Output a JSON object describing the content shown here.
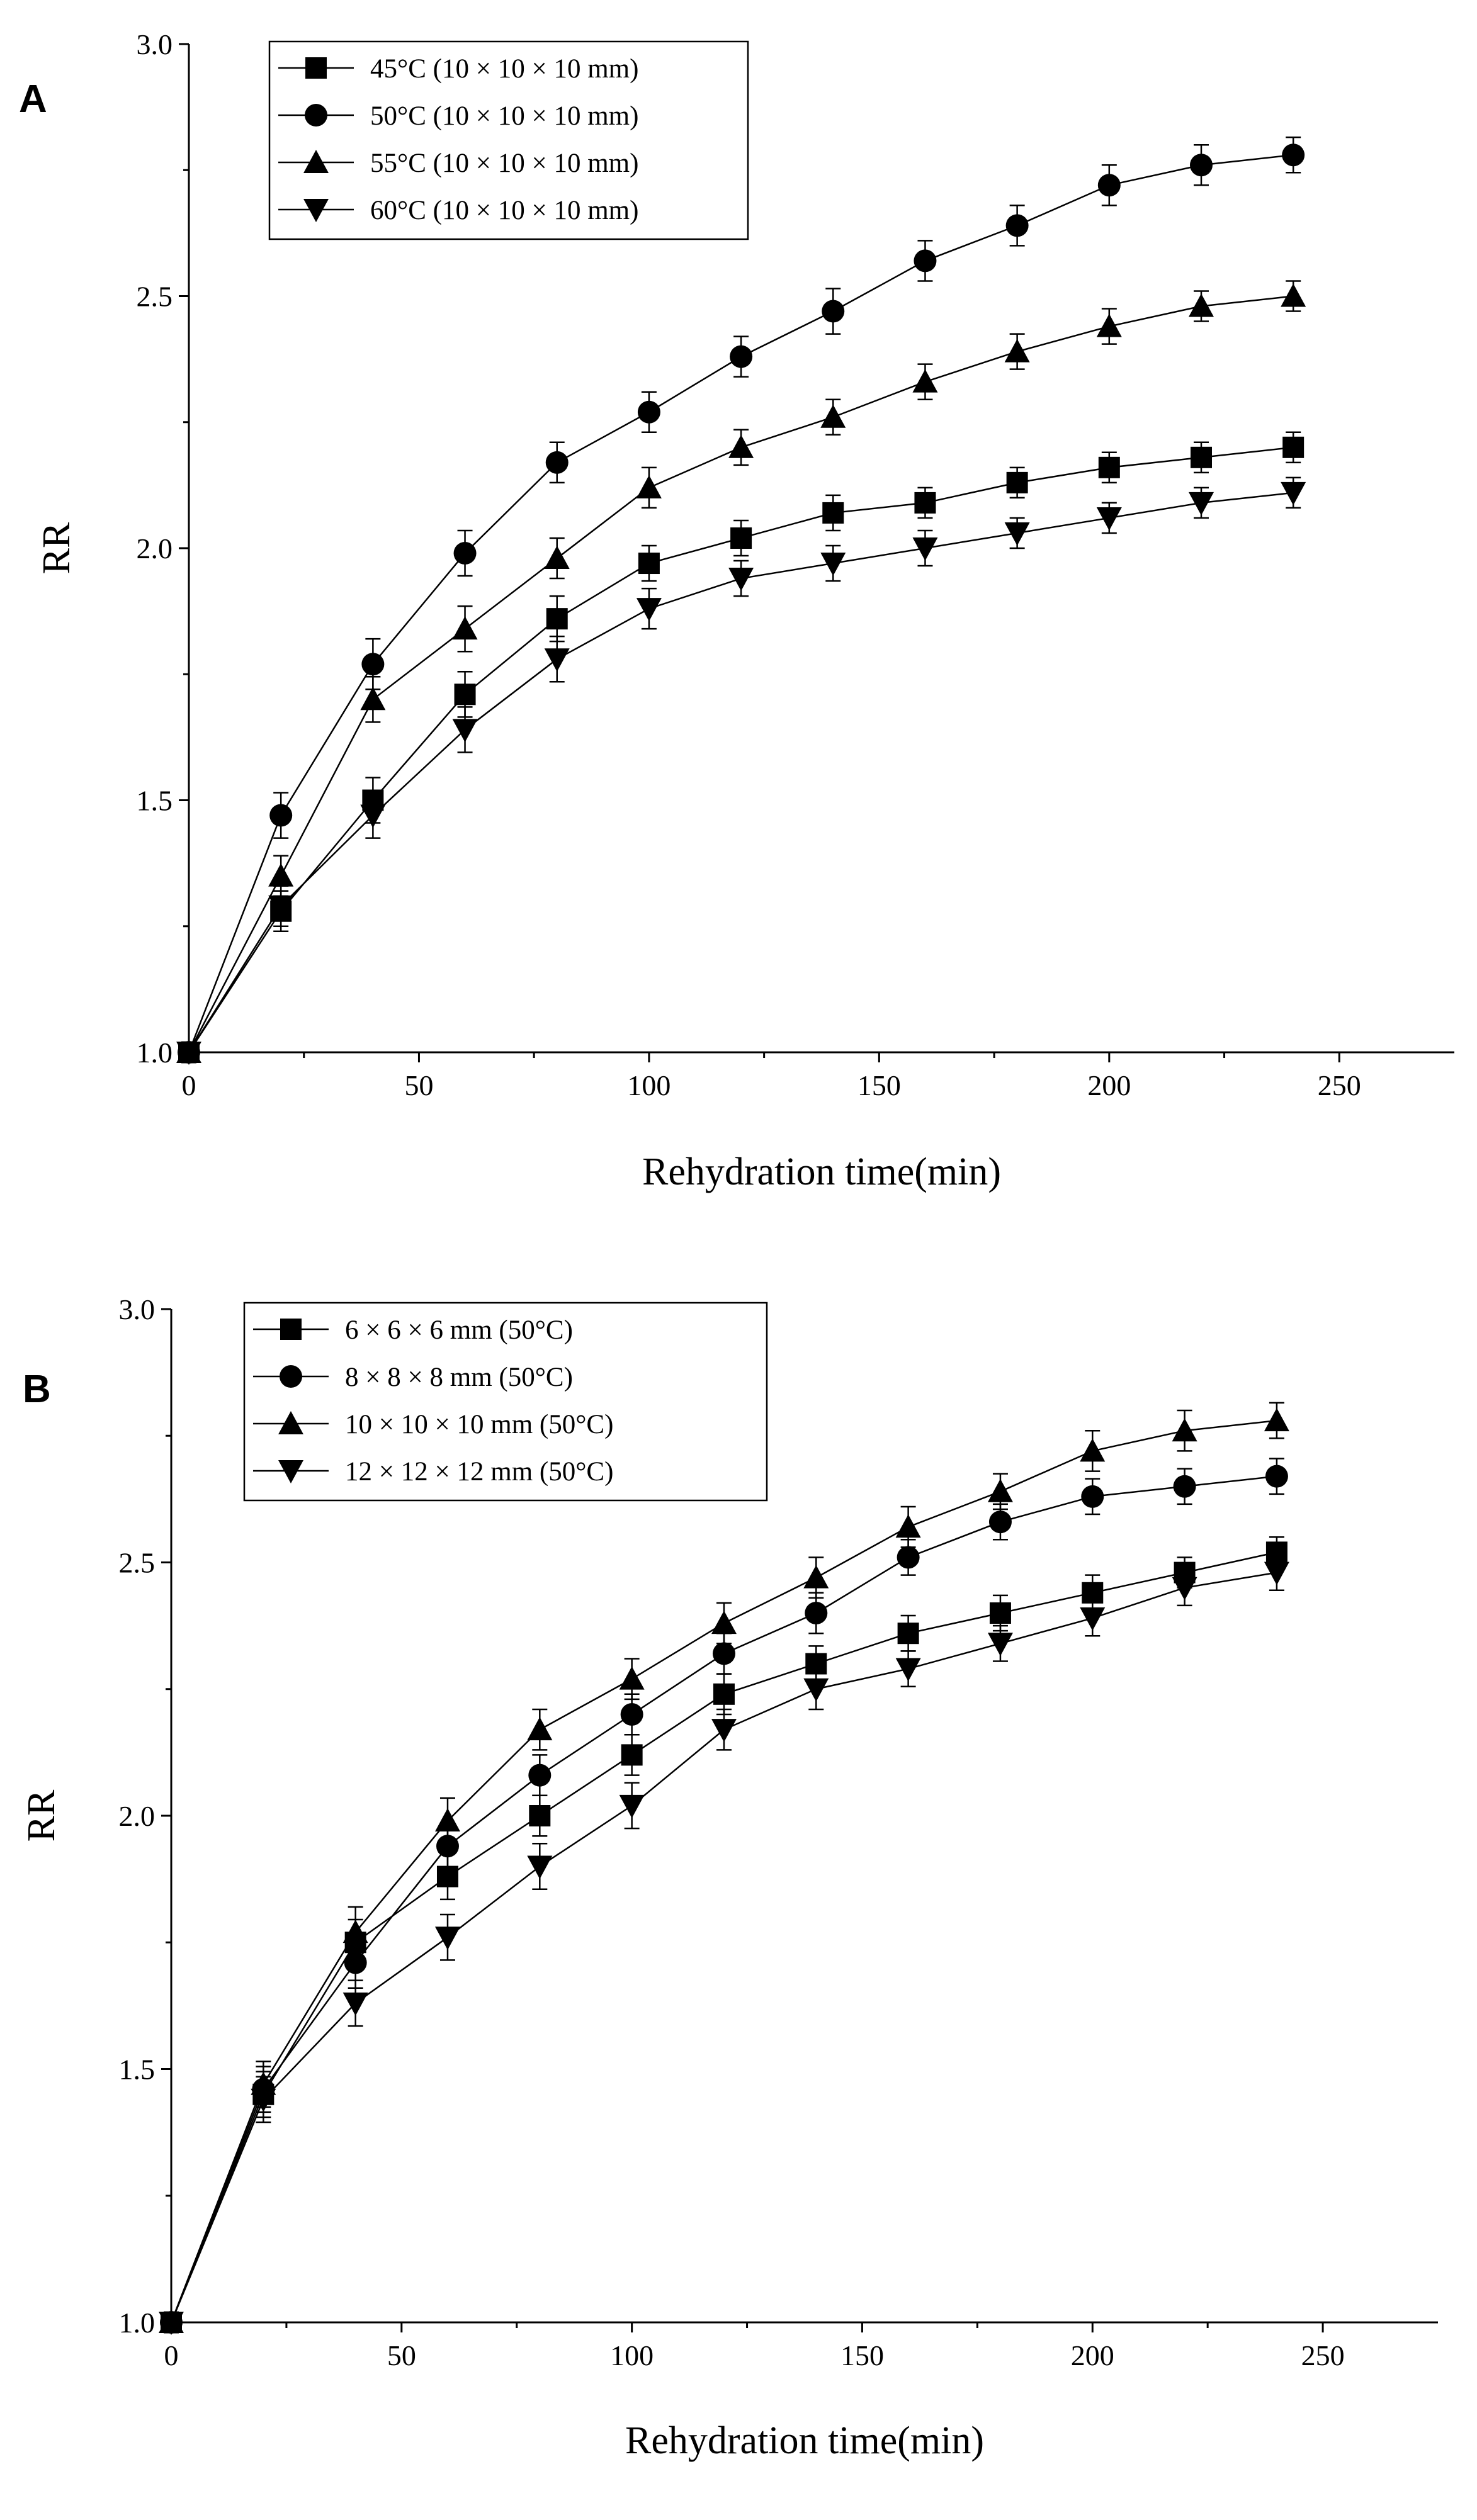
{
  "chart_data": [
    {
      "panel": "A",
      "type": "line",
      "xlabel": "Rehydration time(min)",
      "ylabel": "RR",
      "xlim": [
        0,
        275
      ],
      "ylim": [
        1.0,
        3.0
      ],
      "x_ticks": [
        0,
        50,
        100,
        150,
        200,
        250
      ],
      "y_ticks": [
        1.0,
        1.5,
        2.0,
        2.5,
        3.0
      ],
      "x_tick_labels": [
        "0",
        "50",
        "100",
        "150",
        "200",
        "250"
      ],
      "y_tick_labels": [
        "1.0",
        "1.5",
        "2.0",
        "2.5",
        "3.0"
      ],
      "legend_position": "top-left",
      "x": [
        0,
        20,
        40,
        60,
        80,
        100,
        120,
        140,
        160,
        180,
        200,
        220,
        240
      ],
      "series": [
        {
          "name": "45°C (10 × 10 × 10 mm)",
          "marker": "square",
          "values": [
            1.0,
            1.28,
            1.5,
            1.71,
            1.86,
            1.97,
            2.02,
            2.07,
            2.09,
            2.13,
            2.16,
            2.18,
            2.2
          ],
          "errors": [
            0.02,
            0.04,
            0.045,
            0.045,
            0.045,
            0.035,
            0.035,
            0.035,
            0.03,
            0.03,
            0.03,
            0.03,
            0.03
          ]
        },
        {
          "name": "50°C (10 × 10 × 10 mm)",
          "marker": "circle",
          "values": [
            1.0,
            1.47,
            1.77,
            1.99,
            2.17,
            2.27,
            2.38,
            2.47,
            2.57,
            2.64,
            2.72,
            2.76,
            2.78
          ],
          "errors": [
            0.02,
            0.045,
            0.05,
            0.045,
            0.04,
            0.04,
            0.04,
            0.045,
            0.04,
            0.04,
            0.04,
            0.04,
            0.035
          ]
        },
        {
          "name": "55°C (10 × 10 × 10 mm)",
          "marker": "triangle-up",
          "values": [
            1.0,
            1.35,
            1.7,
            1.84,
            1.98,
            2.12,
            2.2,
            2.26,
            2.33,
            2.39,
            2.44,
            2.48,
            2.5
          ],
          "errors": [
            0.02,
            0.04,
            0.045,
            0.045,
            0.04,
            0.04,
            0.035,
            0.035,
            0.035,
            0.035,
            0.035,
            0.03,
            0.03
          ]
        },
        {
          "name": "60°C (10 × 10 × 10 mm)",
          "marker": "triangle-down",
          "values": [
            1.0,
            1.29,
            1.47,
            1.64,
            1.78,
            1.88,
            1.94,
            1.97,
            2.0,
            2.03,
            2.06,
            2.09,
            2.11
          ],
          "errors": [
            0.02,
            0.04,
            0.045,
            0.045,
            0.045,
            0.04,
            0.035,
            0.035,
            0.035,
            0.03,
            0.03,
            0.03,
            0.03
          ]
        }
      ]
    },
    {
      "panel": "B",
      "type": "line",
      "xlabel": "Rehydration time(min)",
      "ylabel": "RR",
      "xlim": [
        0,
        275
      ],
      "ylim": [
        1.0,
        3.0
      ],
      "x_ticks": [
        0,
        50,
        100,
        150,
        200,
        250
      ],
      "y_ticks": [
        1.0,
        1.5,
        2.0,
        2.5,
        3.0
      ],
      "x_tick_labels": [
        "0",
        "50",
        "100",
        "150",
        "200",
        "250"
      ],
      "y_tick_labels": [
        "1.0",
        "1.5",
        "2.0",
        "2.5",
        "3.0"
      ],
      "legend_position": "top-left",
      "x": [
        0,
        20,
        40,
        60,
        80,
        100,
        120,
        140,
        160,
        180,
        200,
        220,
        240
      ],
      "series": [
        {
          "name": "6 × 6 × 6 mm (50°C)",
          "marker": "square",
          "values": [
            1.0,
            1.45,
            1.75,
            1.88,
            2.0,
            2.12,
            2.24,
            2.3,
            2.36,
            2.4,
            2.44,
            2.48,
            2.52
          ],
          "errors": [
            0.02,
            0.045,
            0.045,
            0.045,
            0.04,
            0.04,
            0.04,
            0.035,
            0.035,
            0.035,
            0.035,
            0.03,
            0.03
          ]
        },
        {
          "name": "8 × 8 × 8 mm (50°C)",
          "marker": "circle",
          "values": [
            1.0,
            1.46,
            1.71,
            1.94,
            2.08,
            2.2,
            2.32,
            2.4,
            2.51,
            2.58,
            2.63,
            2.65,
            2.67
          ],
          "errors": [
            0.02,
            0.045,
            0.05,
            0.045,
            0.04,
            0.04,
            0.04,
            0.04,
            0.035,
            0.035,
            0.035,
            0.035,
            0.035
          ]
        },
        {
          "name": "10 × 10 × 10 mm (50°C)",
          "marker": "triangle-up",
          "values": [
            1.0,
            1.47,
            1.77,
            1.99,
            2.17,
            2.27,
            2.38,
            2.47,
            2.57,
            2.64,
            2.72,
            2.76,
            2.78
          ],
          "errors": [
            0.02,
            0.045,
            0.05,
            0.045,
            0.04,
            0.04,
            0.04,
            0.04,
            0.04,
            0.035,
            0.04,
            0.04,
            0.035
          ]
        },
        {
          "name": "12 × 12 × 12 mm (50°C)",
          "marker": "triangle-down",
          "values": [
            1.0,
            1.44,
            1.63,
            1.76,
            1.9,
            2.02,
            2.17,
            2.25,
            2.29,
            2.34,
            2.39,
            2.45,
            2.48
          ],
          "errors": [
            0.02,
            0.045,
            0.045,
            0.045,
            0.045,
            0.045,
            0.04,
            0.04,
            0.035,
            0.035,
            0.035,
            0.035,
            0.035
          ]
        }
      ]
    }
  ]
}
